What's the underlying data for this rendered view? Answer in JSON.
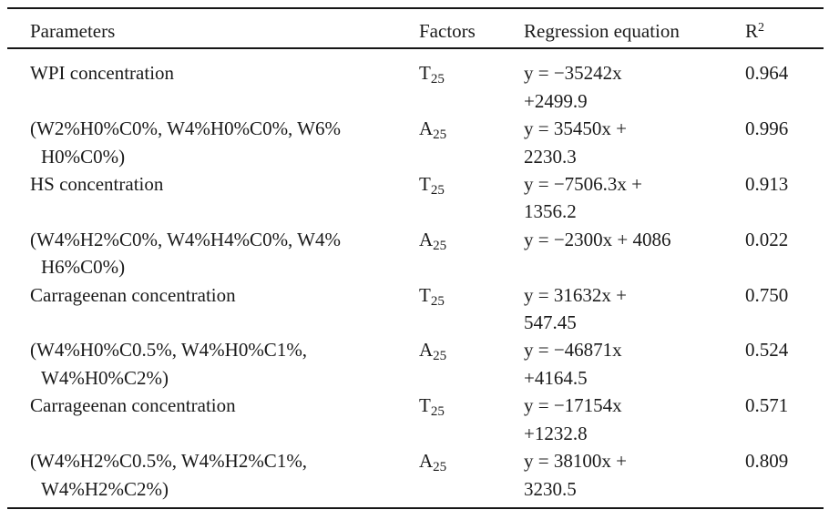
{
  "colors": {
    "background": "#ffffff",
    "text": "#1b1b1b",
    "rule": "#161616"
  },
  "table": {
    "columns": {
      "parameters": "Parameters",
      "factors": "Factors",
      "equation": "Regression equation",
      "r2_base": "R",
      "r2_sup": "2"
    },
    "rows": [
      {
        "param_line1": "WPI concentration",
        "param_line2": "",
        "factor_base": "T",
        "factor_sub": "25",
        "eq_line1": "y = −35242x",
        "eq_line2": "+2499.9",
        "r2": "0.964"
      },
      {
        "param_line1": "(W2%H0%C0%, W4%H0%C0%, W6%",
        "param_line2": "H0%C0%)",
        "factor_base": "A",
        "factor_sub": "25",
        "eq_line1": "y = 35450x +",
        "eq_line2": "2230.3",
        "r2": "0.996"
      },
      {
        "param_line1": "HS concentration",
        "param_line2": "",
        "factor_base": "T",
        "factor_sub": "25",
        "eq_line1": "y = −7506.3x +",
        "eq_line2": "1356.2",
        "r2": "0.913"
      },
      {
        "param_line1": "(W4%H2%C0%, W4%H4%C0%, W4%",
        "param_line2": "H6%C0%)",
        "factor_base": "A",
        "factor_sub": "25",
        "eq_line1": "y = −2300x + 4086",
        "eq_line2": "",
        "r2": "0.022"
      },
      {
        "param_line1": "Carrageenan concentration",
        "param_line2": "",
        "factor_base": "T",
        "factor_sub": "25",
        "eq_line1": "y = 31632x +",
        "eq_line2": "547.45",
        "r2": "0.750"
      },
      {
        "param_line1": "(W4%H0%C0.5%, W4%H0%C1%,",
        "param_line2": "W4%H0%C2%)",
        "factor_base": "A",
        "factor_sub": "25",
        "eq_line1": "y = −46871x",
        "eq_line2": "+4164.5",
        "r2": "0.524"
      },
      {
        "param_line1": "Carrageenan concentration",
        "param_line2": "",
        "factor_base": "T",
        "factor_sub": "25",
        "eq_line1": "y = −17154x",
        "eq_line2": "+1232.8",
        "r2": "0.571"
      },
      {
        "param_line1": "(W4%H2%C0.5%, W4%H2%C1%,",
        "param_line2": "W4%H2%C2%)",
        "factor_base": "A",
        "factor_sub": "25",
        "eq_line1": "y = 38100x +",
        "eq_line2": "3230.5",
        "r2": "0.809"
      }
    ]
  }
}
